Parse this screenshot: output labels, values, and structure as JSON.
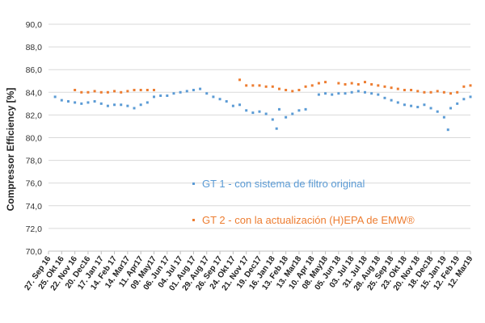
{
  "chart_data": {
    "type": "scatter",
    "title": "",
    "xlabel": "",
    "ylabel": "Compressor Efficiency [%]",
    "ylim": [
      70,
      90
    ],
    "yticks": [
      "70,0",
      "72,0",
      "74,0",
      "76,0",
      "78,0",
      "80,0",
      "82,0",
      "84,0",
      "86,0",
      "88,0",
      "90,0"
    ],
    "xticks": [
      "27. Sep 16",
      "25. Okt 16",
      "22. Nov 16",
      "20. Dec16",
      "17. Jan 17",
      "14. Feb 17",
      "14. Mar17",
      "11. Apr17",
      "09. May17",
      "06. Jun 17",
      "04. Jul 17",
      "01. Aug 17",
      "29. Aug 17",
      "26. Sep 17",
      "24. Okt 17",
      "21. Nov 17",
      "19. Dec17",
      "16. Jan 18",
      "13. Feb 18",
      "13. Mar18",
      "10. Apr 18",
      "08. May18",
      "05. Jun 18",
      "03. Jul 18",
      "31. Jul 18",
      "28. Aug 18",
      "25. Sep 18",
      "23. Okt 18",
      "20. Nov 18",
      "18. Dec18",
      "15. Jan 19",
      "12. Feb 19",
      "12. Mar19"
    ],
    "grid": true,
    "legend_placement": "inside-center",
    "series": [
      {
        "name": "GT 1 - con sistema de filtro original",
        "color": "#5b9bd5",
        "points": [
          [
            0.5,
            83.6
          ],
          [
            1,
            83.3
          ],
          [
            1.5,
            83.2
          ],
          [
            2,
            83.1
          ],
          [
            2.5,
            83.0
          ],
          [
            3,
            83.1
          ],
          [
            3.5,
            83.2
          ],
          [
            4,
            83.0
          ],
          [
            4.5,
            82.8
          ],
          [
            5,
            82.9
          ],
          [
            5.5,
            82.9
          ],
          [
            6,
            82.8
          ],
          [
            6.5,
            82.6
          ],
          [
            7,
            82.9
          ],
          [
            7.5,
            83.1
          ],
          [
            8,
            83.6
          ],
          [
            8.5,
            83.7
          ],
          [
            9,
            83.7
          ],
          [
            9.5,
            83.9
          ],
          [
            10,
            84.0
          ],
          [
            10.5,
            84.1
          ],
          [
            11,
            84.2
          ],
          [
            11.5,
            84.3
          ],
          [
            12,
            83.9
          ],
          [
            12.5,
            83.6
          ],
          [
            13,
            83.4
          ],
          [
            13.5,
            83.2
          ],
          [
            14,
            82.8
          ],
          [
            14.5,
            82.9
          ],
          [
            15,
            82.4
          ],
          [
            15.5,
            82.2
          ],
          [
            16,
            82.3
          ],
          [
            16.5,
            82.1
          ],
          [
            17,
            81.6
          ],
          [
            17.3,
            80.8
          ],
          [
            17.5,
            82.5
          ],
          [
            18,
            81.8
          ],
          [
            18.5,
            82.1
          ],
          [
            19,
            82.4
          ],
          [
            19.5,
            82.5
          ],
          [
            20.5,
            83.8
          ],
          [
            21,
            83.9
          ],
          [
            21.5,
            83.8
          ],
          [
            22,
            83.9
          ],
          [
            22.5,
            83.9
          ],
          [
            23,
            84.0
          ],
          [
            23.5,
            84.1
          ],
          [
            24,
            84.0
          ],
          [
            24.5,
            83.9
          ],
          [
            25,
            83.8
          ],
          [
            25.5,
            83.5
          ],
          [
            26,
            83.3
          ],
          [
            26.5,
            83.1
          ],
          [
            27,
            82.9
          ],
          [
            27.5,
            82.8
          ],
          [
            28,
            82.7
          ],
          [
            28.5,
            82.9
          ],
          [
            29,
            82.6
          ],
          [
            29.5,
            82.3
          ],
          [
            30,
            81.8
          ],
          [
            30.3,
            80.7
          ],
          [
            30.5,
            82.6
          ],
          [
            31,
            83.0
          ],
          [
            31.5,
            83.4
          ],
          [
            32,
            83.6
          ]
        ]
      },
      {
        "name": "GT 2 - con la actualización (H)EPA de EMW®",
        "color": "#ed7d31",
        "points": [
          [
            2,
            84.2
          ],
          [
            2.5,
            84.0
          ],
          [
            3,
            84.0
          ],
          [
            3.5,
            84.1
          ],
          [
            4,
            84.0
          ],
          [
            4.5,
            84.0
          ],
          [
            5,
            84.1
          ],
          [
            5.5,
            84.0
          ],
          [
            6,
            84.1
          ],
          [
            6.5,
            84.2
          ],
          [
            7,
            84.2
          ],
          [
            7.5,
            84.2
          ],
          [
            8,
            84.2
          ],
          [
            14.5,
            85.1
          ],
          [
            15,
            84.6
          ],
          [
            15.5,
            84.6
          ],
          [
            16,
            84.6
          ],
          [
            16.5,
            84.5
          ],
          [
            17,
            84.5
          ],
          [
            17.5,
            84.3
          ],
          [
            18,
            84.2
          ],
          [
            18.5,
            84.1
          ],
          [
            19,
            84.2
          ],
          [
            19.5,
            84.5
          ],
          [
            20,
            84.6
          ],
          [
            20.5,
            84.8
          ],
          [
            21,
            84.9
          ],
          [
            22,
            84.8
          ],
          [
            22.5,
            84.7
          ],
          [
            23,
            84.8
          ],
          [
            23.5,
            84.7
          ],
          [
            24,
            84.9
          ],
          [
            24.5,
            84.7
          ],
          [
            25,
            84.6
          ],
          [
            25.5,
            84.5
          ],
          [
            26,
            84.4
          ],
          [
            26.5,
            84.3
          ],
          [
            27,
            84.2
          ],
          [
            27.5,
            84.2
          ],
          [
            28,
            84.1
          ],
          [
            28.5,
            84.0
          ],
          [
            29,
            84.0
          ],
          [
            29.5,
            84.1
          ],
          [
            30,
            84.0
          ],
          [
            30.5,
            83.9
          ],
          [
            31,
            84.0
          ],
          [
            31.5,
            84.5
          ],
          [
            32,
            84.6
          ]
        ]
      }
    ]
  }
}
